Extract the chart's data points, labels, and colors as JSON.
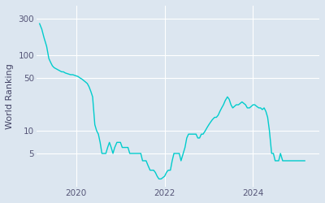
{
  "ylabel": "World Ranking",
  "line_color": "#00CCCC",
  "background_color": "#DCE6F0",
  "grid_color": "#FFFFFF",
  "yticks": [
    5,
    10,
    50,
    100,
    300
  ],
  "ytick_labels": [
    "5",
    "10",
    "50",
    "100",
    "300"
  ],
  "xtick_labels": [
    "2020",
    "2022",
    "2024"
  ],
  "xtick_positions": [
    2020,
    2022,
    2024
  ],
  "xlim": [
    2019.1,
    2025.5
  ],
  "ylim": [
    1.8,
    450
  ],
  "data": [
    [
      2019.17,
      260
    ],
    [
      2019.22,
      220
    ],
    [
      2019.27,
      170
    ],
    [
      2019.33,
      130
    ],
    [
      2019.38,
      90
    ],
    [
      2019.42,
      80
    ],
    [
      2019.46,
      72
    ],
    [
      2019.5,
      68
    ],
    [
      2019.54,
      66
    ],
    [
      2019.58,
      64
    ],
    [
      2019.62,
      62
    ],
    [
      2019.67,
      60
    ],
    [
      2019.71,
      60
    ],
    [
      2019.75,
      58
    ],
    [
      2019.79,
      57
    ],
    [
      2019.83,
      56
    ],
    [
      2019.87,
      55
    ],
    [
      2019.92,
      55
    ],
    [
      2019.96,
      54
    ],
    [
      2020.0,
      53
    ],
    [
      2020.04,
      52
    ],
    [
      2020.08,
      50
    ],
    [
      2020.13,
      48
    ],
    [
      2020.17,
      46
    ],
    [
      2020.21,
      44
    ],
    [
      2020.25,
      42
    ],
    [
      2020.29,
      38
    ],
    [
      2020.33,
      33
    ],
    [
      2020.37,
      28
    ],
    [
      2020.42,
      12
    ],
    [
      2020.46,
      10
    ],
    [
      2020.5,
      9
    ],
    [
      2020.54,
      7
    ],
    [
      2020.58,
      5
    ],
    [
      2020.62,
      5
    ],
    [
      2020.67,
      5
    ],
    [
      2020.71,
      6
    ],
    [
      2020.75,
      7
    ],
    [
      2020.79,
      6
    ],
    [
      2020.83,
      5
    ],
    [
      2020.87,
      6
    ],
    [
      2020.92,
      7
    ],
    [
      2020.96,
      7
    ],
    [
      2021.0,
      7
    ],
    [
      2021.04,
      6
    ],
    [
      2021.08,
      6
    ],
    [
      2021.13,
      6
    ],
    [
      2021.17,
      6
    ],
    [
      2021.21,
      5
    ],
    [
      2021.25,
      5
    ],
    [
      2021.29,
      5
    ],
    [
      2021.33,
      5
    ],
    [
      2021.37,
      5
    ],
    [
      2021.42,
      5
    ],
    [
      2021.46,
      5
    ],
    [
      2021.5,
      4
    ],
    [
      2021.54,
      4
    ],
    [
      2021.58,
      4
    ],
    [
      2021.62,
      3.5
    ],
    [
      2021.67,
      3
    ],
    [
      2021.71,
      3
    ],
    [
      2021.75,
      3
    ],
    [
      2021.79,
      2.8
    ],
    [
      2021.83,
      2.5
    ],
    [
      2021.87,
      2.3
    ],
    [
      2021.92,
      2.3
    ],
    [
      2021.96,
      2.4
    ],
    [
      2022.0,
      2.5
    ],
    [
      2022.04,
      2.8
    ],
    [
      2022.08,
      3
    ],
    [
      2022.13,
      3
    ],
    [
      2022.17,
      4
    ],
    [
      2022.21,
      5
    ],
    [
      2022.25,
      5
    ],
    [
      2022.29,
      5
    ],
    [
      2022.33,
      5
    ],
    [
      2022.37,
      4
    ],
    [
      2022.42,
      5
    ],
    [
      2022.46,
      6
    ],
    [
      2022.5,
      8
    ],
    [
      2022.54,
      9
    ],
    [
      2022.58,
      9
    ],
    [
      2022.62,
      9
    ],
    [
      2022.67,
      9
    ],
    [
      2022.71,
      9
    ],
    [
      2022.75,
      8
    ],
    [
      2022.79,
      8
    ],
    [
      2022.83,
      9
    ],
    [
      2022.87,
      9
    ],
    [
      2022.92,
      10
    ],
    [
      2022.96,
      11
    ],
    [
      2023.0,
      12
    ],
    [
      2023.04,
      13
    ],
    [
      2023.08,
      14
    ],
    [
      2023.13,
      15
    ],
    [
      2023.17,
      15
    ],
    [
      2023.21,
      16
    ],
    [
      2023.25,
      18
    ],
    [
      2023.29,
      20
    ],
    [
      2023.33,
      22
    ],
    [
      2023.37,
      25
    ],
    [
      2023.42,
      28
    ],
    [
      2023.46,
      26
    ],
    [
      2023.5,
      22
    ],
    [
      2023.54,
      20
    ],
    [
      2023.58,
      21
    ],
    [
      2023.62,
      22
    ],
    [
      2023.67,
      22
    ],
    [
      2023.71,
      23
    ],
    [
      2023.75,
      24
    ],
    [
      2023.79,
      23
    ],
    [
      2023.83,
      22
    ],
    [
      2023.87,
      20
    ],
    [
      2023.92,
      20
    ],
    [
      2023.96,
      21
    ],
    [
      2024.0,
      22
    ],
    [
      2024.04,
      22
    ],
    [
      2024.08,
      21
    ],
    [
      2024.13,
      20
    ],
    [
      2024.17,
      20
    ],
    [
      2024.21,
      19
    ],
    [
      2024.25,
      20
    ],
    [
      2024.29,
      18
    ],
    [
      2024.33,
      15
    ],
    [
      2024.37,
      10
    ],
    [
      2024.42,
      5
    ],
    [
      2024.46,
      5
    ],
    [
      2024.5,
      4
    ],
    [
      2024.54,
      4
    ],
    [
      2024.58,
      4
    ],
    [
      2024.62,
      5
    ],
    [
      2024.67,
      4
    ],
    [
      2024.71,
      4
    ],
    [
      2024.75,
      4
    ],
    [
      2024.79,
      4
    ],
    [
      2024.83,
      4
    ],
    [
      2024.88,
      4
    ],
    [
      2024.92,
      4
    ],
    [
      2024.96,
      4
    ],
    [
      2025.0,
      4
    ],
    [
      2025.08,
      4
    ],
    [
      2025.17,
      4
    ]
  ]
}
